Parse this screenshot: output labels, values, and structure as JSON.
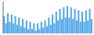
{
  "chart_data": {
    "type": "bar",
    "values": [
      36,
      31,
      38,
      32,
      37,
      31,
      36,
      30,
      35,
      29,
      34,
      28,
      33,
      27,
      32,
      27,
      31,
      26,
      31,
      27,
      32,
      28,
      33,
      29,
      35,
      30,
      37,
      31,
      39,
      33,
      41,
      34,
      42,
      35,
      43,
      35,
      42,
      34,
      41,
      33,
      40,
      32,
      39,
      32,
      40,
      33,
      41,
      34
    ],
    "color": "#4da6e8",
    "ylim": [
      24,
      46
    ],
    "tick_labels": false
  }
}
